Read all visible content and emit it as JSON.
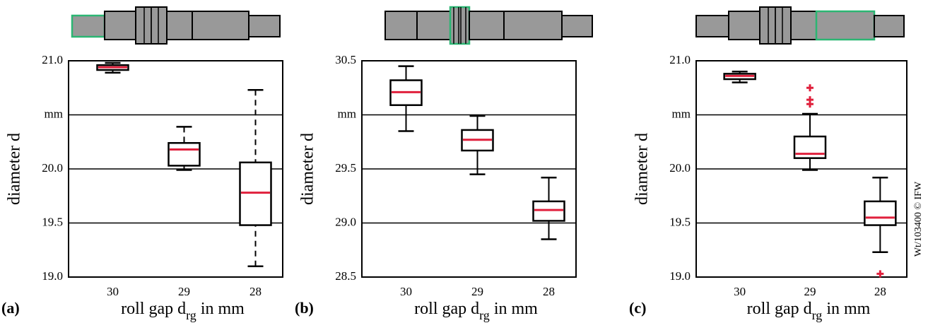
{
  "chart_data": [
    {
      "type": "box",
      "panel_label": "(a)",
      "ylabel": "diameter d",
      "xlabel": [
        "roll gap d",
        "rg",
        " in mm"
      ],
      "categories": [
        "30",
        "29",
        "28"
      ],
      "ylim": [
        19.0,
        21.0
      ],
      "yticks": [
        {
          "value": 19.0,
          "label": "19.0"
        },
        19.5,
        {
          "value": 20.0,
          "label": "20.0"
        },
        {
          "value": 20.5,
          "label": "mm"
        },
        {
          "value": 21.0,
          "label": "21.0"
        }
      ],
      "grid": true,
      "whisker_dashed": true,
      "median_color": "#e0203c",
      "boxes": [
        {
          "whislo": 20.89,
          "q1": 20.915,
          "med": 20.94,
          "q3": 20.96,
          "whishi": 20.98,
          "fliers": []
        },
        {
          "whislo": 19.99,
          "q1": 20.03,
          "med": 20.18,
          "q3": 20.24,
          "whishi": 20.39,
          "fliers": []
        },
        {
          "whislo": 19.1,
          "q1": 19.48,
          "med": 19.78,
          "q3": 20.06,
          "whishi": 20.73,
          "fliers": []
        }
      ]
    },
    {
      "type": "box",
      "panel_label": "(b)",
      "ylabel": "diameter d",
      "xlabel": [
        "roll gap d",
        "rg",
        " in mm"
      ],
      "categories": [
        "30",
        "29",
        "28"
      ],
      "ylim": [
        28.5,
        30.5
      ],
      "yticks": [
        28.5,
        {
          "value": 29.0,
          "label": "29.0"
        },
        29.5,
        {
          "value": 30.0,
          "label": "mm"
        },
        30.5
      ],
      "grid": true,
      "whisker_dashed": false,
      "median_color": "#e0203c",
      "boxes": [
        {
          "whislo": 29.85,
          "q1": 30.09,
          "med": 30.21,
          "q3": 30.32,
          "whishi": 30.45,
          "fliers": []
        },
        {
          "whislo": 29.45,
          "q1": 29.67,
          "med": 29.77,
          "q3": 29.86,
          "whishi": 29.99,
          "fliers": []
        },
        {
          "whislo": 28.85,
          "q1": 29.02,
          "med": 29.12,
          "q3": 29.2,
          "whishi": 29.42,
          "fliers": []
        }
      ]
    },
    {
      "type": "box",
      "panel_label": "(c)",
      "ylabel": "diameter d",
      "xlabel": [
        "roll gap d",
        "rg",
        " in mm"
      ],
      "categories": [
        "30",
        "29",
        "28"
      ],
      "ylim": [
        19.0,
        21.0
      ],
      "yticks": [
        {
          "value": 19.0,
          "label": "19.0"
        },
        19.5,
        {
          "value": 20.0,
          "label": "20.0"
        },
        {
          "value": 20.5,
          "label": "mm"
        },
        {
          "value": 21.0,
          "label": "21.0"
        }
      ],
      "grid": true,
      "whisker_dashed": false,
      "median_color": "#e0203c",
      "boxes": [
        {
          "whislo": 20.8,
          "q1": 20.83,
          "med": 20.86,
          "q3": 20.88,
          "whishi": 20.9,
          "fliers": []
        },
        {
          "whislo": 19.99,
          "q1": 20.1,
          "med": 20.14,
          "q3": 20.3,
          "whishi": 20.51,
          "fliers": [
            20.6,
            20.64,
            20.75
          ]
        },
        {
          "whislo": 19.23,
          "q1": 19.48,
          "med": 19.55,
          "q3": 19.7,
          "whishi": 19.92,
          "fliers": [
            19.03
          ]
        }
      ]
    }
  ],
  "credit": "Wt/103400 © IFW"
}
